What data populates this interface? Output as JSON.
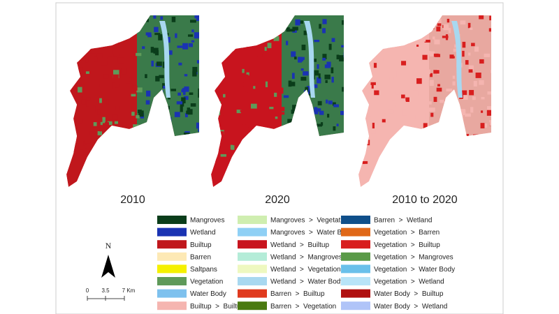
{
  "panels": [
    {
      "label": "2010",
      "base": "#c0171c",
      "accent": "#1a33b3"
    },
    {
      "label": "2020",
      "base": "#c8141e",
      "accent": "#1a33b3"
    },
    {
      "label": "2010 to 2020",
      "base": "#f5b5b0",
      "accent": "#d81e1e"
    }
  ],
  "legend": [
    {
      "label": "Mangroves",
      "color": "#0a3d1a"
    },
    {
      "label": "Wetland",
      "color": "#1a33b3"
    },
    {
      "label": "Builtup",
      "color": "#c0171c"
    },
    {
      "label": "Barren",
      "color": "#fde9b5"
    },
    {
      "label": "Saltpans",
      "color": "#f5f000"
    },
    {
      "label": "Vegetation",
      "color": "#5f9a5a"
    },
    {
      "label": "Water Body",
      "color": "#7ec1ee"
    },
    {
      "label": "Builtup  >  Builtup",
      "color": "#f5b5b0"
    },
    {
      "label": "Mangroves  >  Vegetation",
      "color": "#cfeeb0"
    },
    {
      "label": "Mangroves  >  Water Body",
      "color": "#8fd0f5"
    },
    {
      "label": "Wetland  >  Builtup",
      "color": "#c8141e"
    },
    {
      "label": "Wetland  >  Mangroves",
      "color": "#b4ecd8"
    },
    {
      "label": "Wetland  >  Vegetation",
      "color": "#eef8c0"
    },
    {
      "label": "Wetland  >  Water Body",
      "color": "#a8d8f0"
    },
    {
      "label": "Barren  >  Builtup",
      "color": "#e03a1e"
    },
    {
      "label": "Barren  >  Vegetation",
      "color": "#4a7a10"
    },
    {
      "label": "Barren  >  Wetland",
      "color": "#0f4f8a"
    },
    {
      "label": "Vegetation  >  Barren",
      "color": "#e06818"
    },
    {
      "label": "Vegetation  >  Builtup",
      "color": "#d81e1e"
    },
    {
      "label": "Vegetation  >  Mangroves",
      "color": "#5a9a48"
    },
    {
      "label": "Vegetation  >  Water Body",
      "color": "#6ac0ea"
    },
    {
      "label": "Vegetation  >  Wetland",
      "color": "#b8e4f8"
    },
    {
      "label": "Water Body  >  Builtup",
      "color": "#b01010"
    },
    {
      "label": "Water Body  >  Wetland",
      "color": "#b0c4f8"
    }
  ],
  "north_label": "N",
  "scale_labels": [
    "0",
    "3.5",
    "7 Km"
  ]
}
